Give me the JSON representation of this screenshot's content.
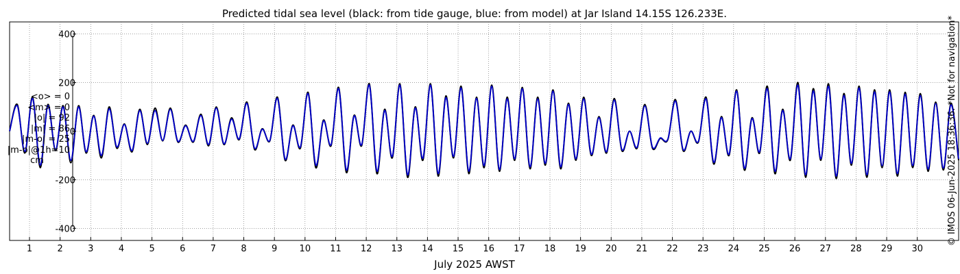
{
  "stats": {
    "lines": [
      "<o> = 0",
      "<m> = 0",
      "|o| = 92",
      "|m| = 86",
      "|m-o| = 25",
      "|m-o|@1h=10"
    ],
    "unit": "cm"
  },
  "colors": {
    "observed": "#000000",
    "model": "#0000cc",
    "grid": "#666666"
  },
  "chart_data": {
    "type": "line",
    "title": "Predicted tidal sea level (black: from tide gauge, blue: from model) at Jar Island 14.15S 126.233E.",
    "xlabel": "July 2025 AWST",
    "ylabel": "",
    "xlim": [
      0.35,
      31.35
    ],
    "ylim": [
      -450,
      450
    ],
    "yticks": [
      -400,
      -200,
      0,
      200,
      400
    ],
    "ytick_labels": [
      "-400",
      "-200",
      "0",
      "200",
      "400"
    ],
    "xticks": [
      1,
      2,
      3,
      4,
      5,
      6,
      7,
      8,
      9,
      10,
      11,
      12,
      13,
      14,
      15,
      16,
      17,
      18,
      19,
      20,
      21,
      22,
      23,
      24,
      25,
      26,
      27,
      28,
      29,
      30
    ],
    "xtick_labels": [
      "1",
      "2",
      "3",
      "4",
      "5",
      "6",
      "7",
      "8",
      "9",
      "10",
      "11",
      "12",
      "13",
      "14",
      "15",
      "16",
      "17",
      "18",
      "19",
      "20",
      "21",
      "22",
      "23",
      "24",
      "25",
      "26",
      "27",
      "28",
      "29",
      "30"
    ],
    "grid": true,
    "copyright": "© IMOS 06-Jun-2025 18:36:36.  *Not for navigation*",
    "series": [
      {
        "name": "from tide gauge",
        "color": "black",
        "x": [
          0.35,
          0.6,
          0.85,
          1.1,
          1.35,
          1.6,
          1.85,
          2.1,
          2.35,
          2.6,
          2.85,
          3.1,
          3.35,
          3.6,
          3.85,
          4.1,
          4.35,
          4.6,
          4.85,
          5.1,
          5.35,
          5.6,
          5.85,
          6.1,
          6.35,
          6.6,
          6.85,
          7.1,
          7.35,
          7.6,
          7.85,
          8.1,
          8.35,
          8.6,
          8.85,
          9.1,
          9.35,
          9.6,
          9.85,
          10.1,
          10.35,
          10.6,
          10.85,
          11.1,
          11.35,
          11.6,
          11.85,
          12.1,
          12.35,
          12.6,
          12.85,
          13.1,
          13.35,
          13.6,
          13.85,
          14.1,
          14.35,
          14.6,
          14.85,
          15.1,
          15.35,
          15.6,
          15.85,
          16.1,
          16.35,
          16.6,
          16.85,
          17.1,
          17.35,
          17.6,
          17.85,
          18.1,
          18.35,
          18.6,
          18.85,
          19.1,
          19.35,
          19.6,
          19.85,
          20.1,
          20.35,
          20.6,
          20.85,
          21.1,
          21.35,
          21.6,
          21.85,
          22.1,
          22.35,
          22.6,
          22.85,
          23.1,
          23.35,
          23.6,
          23.85,
          24.1,
          24.35,
          24.6,
          24.85,
          25.1,
          25.35,
          25.6,
          25.85,
          26.1,
          26.35,
          26.6,
          26.85,
          27.1,
          27.35,
          27.6,
          27.85,
          28.1,
          28.35,
          28.6,
          28.85,
          29.1,
          29.35,
          29.6,
          29.85,
          30.1,
          30.35,
          30.6,
          30.85,
          31.1,
          31.35
        ],
        "y": [
          0,
          110,
          -90,
          140,
          -150,
          110,
          -80,
          105,
          -130,
          105,
          -90,
          65,
          -110,
          100,
          -70,
          30,
          -85,
          90,
          -55,
          95,
          -40,
          95,
          -45,
          25,
          -45,
          70,
          -60,
          100,
          -55,
          55,
          -35,
          120,
          -75,
          10,
          -40,
          140,
          -120,
          25,
          -70,
          160,
          -150,
          45,
          -60,
          180,
          -170,
          65,
          -60,
          195,
          -175,
          90,
          -110,
          195,
          -190,
          100,
          -120,
          195,
          -185,
          145,
          -110,
          185,
          -175,
          140,
          -150,
          190,
          -165,
          140,
          -120,
          180,
          -155,
          140,
          -140,
          170,
          -155,
          115,
          -120,
          140,
          -100,
          60,
          -90,
          135,
          -80,
          0,
          -70,
          110,
          -70,
          -30,
          -35,
          130,
          -80,
          0,
          -45,
          140,
          -135,
          60,
          -100,
          170,
          -160,
          55,
          -90,
          185,
          -175,
          90,
          -120,
          200,
          -190,
          175,
          -120,
          195,
          -195,
          155,
          -140,
          185,
          -190,
          170,
          -150,
          170,
          -185,
          160,
          -150,
          155,
          -165,
          120,
          -160,
          115,
          -120
        ]
      },
      {
        "name": "from model",
        "color": "blue",
        "x": [
          0.35,
          0.6,
          0.85,
          1.1,
          1.35,
          1.6,
          1.85,
          2.1,
          2.35,
          2.6,
          2.85,
          3.1,
          3.35,
          3.6,
          3.85,
          4.1,
          4.35,
          4.6,
          4.85,
          5.1,
          5.35,
          5.6,
          5.85,
          6.1,
          6.35,
          6.6,
          6.85,
          7.1,
          7.35,
          7.6,
          7.85,
          8.1,
          8.35,
          8.6,
          8.85,
          9.1,
          9.35,
          9.6,
          9.85,
          10.1,
          10.35,
          10.6,
          10.85,
          11.1,
          11.35,
          11.6,
          11.85,
          12.1,
          12.35,
          12.6,
          12.85,
          13.1,
          13.35,
          13.6,
          13.85,
          14.1,
          14.35,
          14.6,
          14.85,
          15.1,
          15.35,
          15.6,
          15.85,
          16.1,
          16.35,
          16.6,
          16.85,
          17.1,
          17.35,
          17.6,
          17.85,
          18.1,
          18.35,
          18.6,
          18.85,
          19.1,
          19.35,
          19.6,
          19.85,
          20.1,
          20.35,
          20.6,
          20.85,
          21.1,
          21.35,
          21.6,
          21.85,
          22.1,
          22.35,
          22.6,
          22.85,
          23.1,
          23.35,
          23.6,
          23.85,
          24.1,
          24.35,
          24.6,
          24.85,
          25.1,
          25.35,
          25.6,
          25.85,
          26.1,
          26.35,
          26.6,
          26.85,
          27.1,
          27.35,
          27.6,
          27.85,
          28.1,
          28.35,
          28.6,
          28.85,
          29.1,
          29.35,
          29.6,
          29.85,
          30.1,
          30.35,
          30.6,
          30.85,
          31.1,
          31.35
        ],
        "y": [
          0,
          105,
          -85,
          135,
          -140,
          105,
          -75,
          100,
          -120,
          100,
          -85,
          62,
          -100,
          92,
          -65,
          28,
          -80,
          85,
          -50,
          85,
          -38,
          90,
          -42,
          22,
          -42,
          65,
          -55,
          95,
          -52,
          50,
          -32,
          115,
          -70,
          8,
          -38,
          135,
          -115,
          22,
          -65,
          155,
          -140,
          42,
          -56,
          175,
          -160,
          62,
          -56,
          190,
          -165,
          85,
          -104,
          190,
          -180,
          95,
          -112,
          190,
          -175,
          138,
          -104,
          178,
          -165,
          135,
          -142,
          185,
          -158,
          133,
          -114,
          175,
          -147,
          133,
          -133,
          165,
          -147,
          110,
          -114,
          133,
          -95,
          56,
          -85,
          128,
          -76,
          0,
          -66,
          104,
          -66,
          -28,
          -33,
          124,
          -76,
          0,
          -42,
          133,
          -128,
          56,
          -95,
          165,
          -152,
          52,
          -85,
          175,
          -165,
          85,
          -114,
          190,
          -180,
          166,
          -114,
          185,
          -185,
          147,
          -133,
          178,
          -180,
          162,
          -142,
          162,
          -175,
          152,
          -142,
          147,
          -156,
          114,
          -152,
          109,
          -114
        ]
      }
    ]
  }
}
